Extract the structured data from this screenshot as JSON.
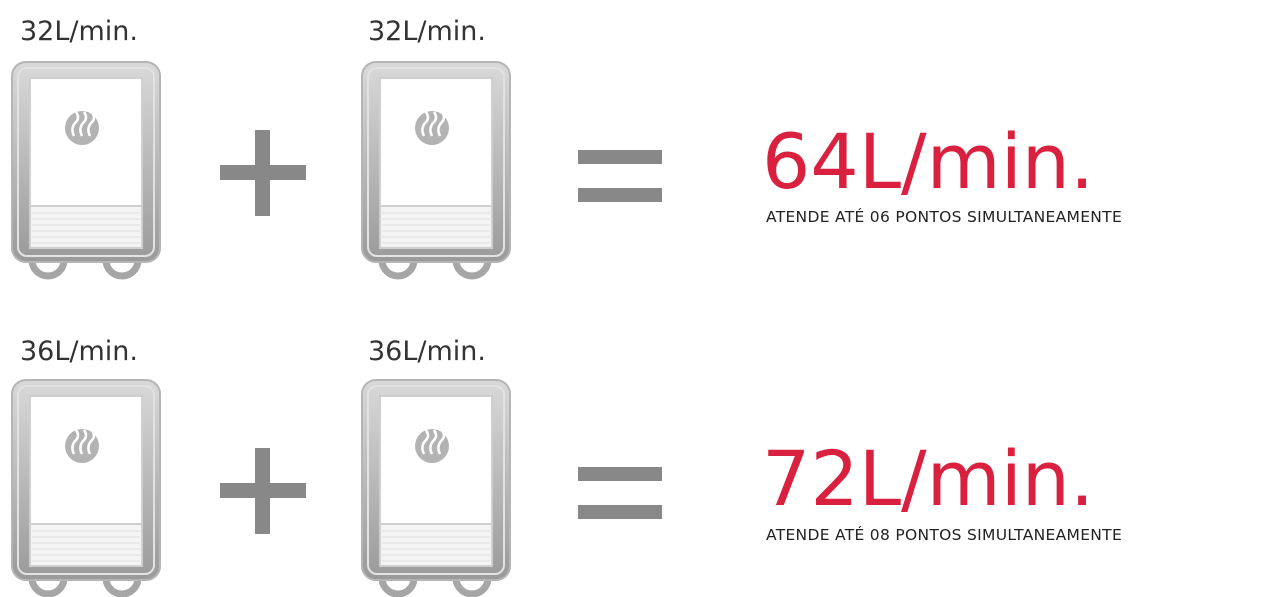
{
  "rows": [
    {
      "units": [
        "32L/min.",
        "32L/min."
      ],
      "total": "64L/min.",
      "caption": "ATENDE ATÉ 06 PONTOS SIMULTANEAMENTE"
    },
    {
      "units": [
        "36L/min.",
        "36L/min."
      ],
      "total": "72L/min.",
      "caption": "ATENDE ATÉ 08 PONTOS SIMULTANEAMENTE"
    }
  ]
}
